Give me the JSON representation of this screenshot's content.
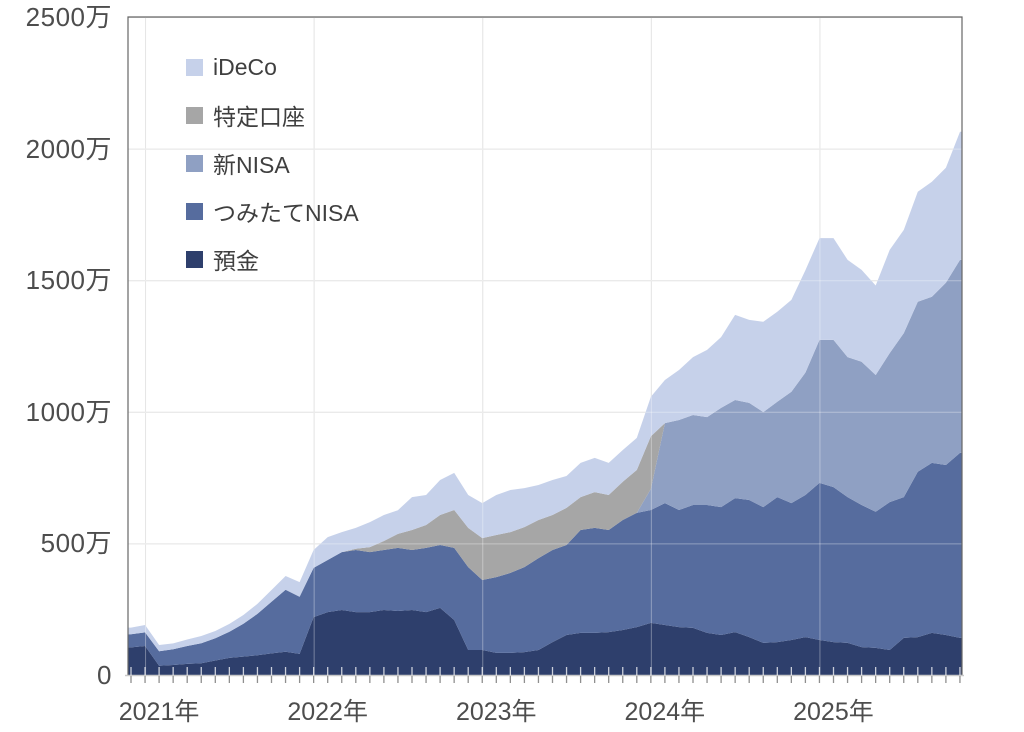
{
  "chart_data": {
    "type": "area",
    "stacked": true,
    "title": "",
    "unit": "万円",
    "grid": true,
    "legend": {
      "position": "top-left-inside",
      "items": [
        {
          "label": "iDeCo",
          "color": "#c6d1ea"
        },
        {
          "label": "特定口座",
          "color": "#a6a6a6"
        },
        {
          "label": "新NISA",
          "color": "#8fa0c3"
        },
        {
          "label": "つみたてNISA",
          "color": "#566c9e"
        },
        {
          "label": "預金",
          "color": "#2e3f6c"
        }
      ]
    },
    "colors": {
      "gridline": "#d9d9d9",
      "plot_border": "#666666",
      "axis_line": "#c9c9c9",
      "tick": "#8f8f8f",
      "axis_text": "#4d4d4d",
      "legend_text": "#3f3f3f"
    },
    "y_axis": {
      "min": 0,
      "max": 2500,
      "ticks": [
        {
          "value": 0,
          "label": "0"
        },
        {
          "value": 500,
          "label": "500万"
        },
        {
          "value": 1000,
          "label": "1000万"
        },
        {
          "value": 1500,
          "label": "1500万"
        },
        {
          "value": 2000,
          "label": "2000万"
        },
        {
          "value": 2500,
          "label": "2500万"
        }
      ]
    },
    "x_axis": {
      "tick_interval": "month",
      "year_labels": [
        {
          "label": "2021年",
          "month_index": 1
        },
        {
          "label": "2022年",
          "month_index": 13
        },
        {
          "label": "2023年",
          "month_index": 25
        },
        {
          "label": "2024年",
          "month_index": 37
        },
        {
          "label": "2025年",
          "month_index": 49
        }
      ]
    },
    "months": [
      "2020-12",
      "2021-01",
      "2021-02",
      "2021-03",
      "2021-04",
      "2021-05",
      "2021-06",
      "2021-07",
      "2021-08",
      "2021-09",
      "2021-10",
      "2021-11",
      "2021-12",
      "2022-01",
      "2022-02",
      "2022-03",
      "2022-04",
      "2022-05",
      "2022-06",
      "2022-07",
      "2022-08",
      "2022-09",
      "2022-10",
      "2022-11",
      "2022-12",
      "2023-01",
      "2023-02",
      "2023-03",
      "2023-04",
      "2023-05",
      "2023-06",
      "2023-07",
      "2023-08",
      "2023-09",
      "2023-10",
      "2023-11",
      "2023-12",
      "2024-01",
      "2024-02",
      "2024-03",
      "2024-04",
      "2024-05",
      "2024-06",
      "2024-07",
      "2024-08",
      "2024-09",
      "2024-10",
      "2024-11",
      "2024-12",
      "2025-01",
      "2025-02",
      "2025-03",
      "2025-04",
      "2025-05",
      "2025-06",
      "2025-07",
      "2025-08",
      "2025-09",
      "2025-10",
      "2025-11"
    ],
    "series": [
      {
        "name": "預金",
        "color": "#2e3f6c",
        "values": [
          105,
          110,
          35,
          38,
          42,
          45,
          55,
          65,
          70,
          75,
          82,
          88,
          80,
          220,
          239,
          247,
          239,
          239,
          247,
          243,
          247,
          239,
          255,
          209,
          95,
          95,
          84,
          84,
          87,
          95,
          125,
          152,
          160,
          160,
          163,
          171,
          182,
          198,
          190,
          182,
          179,
          160,
          152,
          163,
          144,
          122,
          125,
          133,
          144,
          133,
          125,
          122,
          106,
          103,
          95,
          141,
          144,
          160,
          152,
          141
        ]
      },
      {
        "name": "つみたてNISA",
        "color": "#566c9e",
        "values": [
          50,
          52,
          55,
          60,
          68,
          76,
          85,
          99,
          125,
          157,
          196,
          236,
          217,
          187,
          198,
          220,
          236,
          228,
          228,
          240,
          228,
          244,
          239,
          274,
          315,
          266,
          288,
          304,
          323,
          349,
          350,
          342,
          391,
          399,
          388,
          418,
          434,
          429,
          463,
          445,
          467,
          486,
          486,
          509,
          521,
          516,
          551,
          520,
          540,
          597,
          589,
          554,
          540,
          517,
          562,
          535,
          628,
          646,
          646,
          703
        ]
      },
      {
        "name": "新NISA",
        "color": "#8fa0c3",
        "values": [
          0,
          0,
          0,
          0,
          0,
          0,
          0,
          0,
          0,
          0,
          0,
          0,
          0,
          0,
          0,
          0,
          0,
          0,
          0,
          0,
          0,
          0,
          0,
          0,
          0,
          0,
          0,
          0,
          0,
          0,
          0,
          0,
          0,
          0,
          0,
          0,
          0,
          80,
          304,
          342,
          342,
          334,
          377,
          373,
          369,
          361,
          362,
          423,
          465,
          543,
          559,
          532,
          544,
          520,
          566,
          623,
          646,
          631,
          692,
          733
        ]
      },
      {
        "name": "特定口座",
        "color": "#a6a6a6",
        "values": [
          0,
          0,
          0,
          0,
          0,
          0,
          0,
          0,
          0,
          0,
          0,
          0,
          0,
          0,
          0,
          0,
          5,
          19,
          34,
          53,
          76,
          87,
          114,
          144,
          149,
          159,
          160,
          155,
          152,
          145,
          133,
          141,
          125,
          136,
          133,
          145,
          163,
          200,
          0,
          0,
          0,
          0,
          0,
          0,
          0,
          0,
          0,
          0,
          0,
          0,
          0,
          0,
          0,
          0,
          0,
          0,
          0,
          0,
          0,
          0
        ]
      },
      {
        "name": "iDeCo",
        "color": "#c6d1ea",
        "values": [
          25,
          28,
          24,
          22,
          25,
          27,
          27,
          30,
          33,
          38,
          45,
          52,
          56,
          68,
          87,
          76,
          79,
          95,
          99,
          90,
          125,
          114,
          133,
          141,
          125,
          133,
          152,
          160,
          148,
          133,
          133,
          121,
          130,
          130,
          122,
          121,
          122,
          150,
          164,
          190,
          220,
          255,
          269,
          323,
          315,
          343,
          342,
          349,
          389,
          387,
          387,
          369,
          349,
          340,
          392,
          392,
          418,
          437,
          437,
          487
        ]
      }
    ]
  }
}
